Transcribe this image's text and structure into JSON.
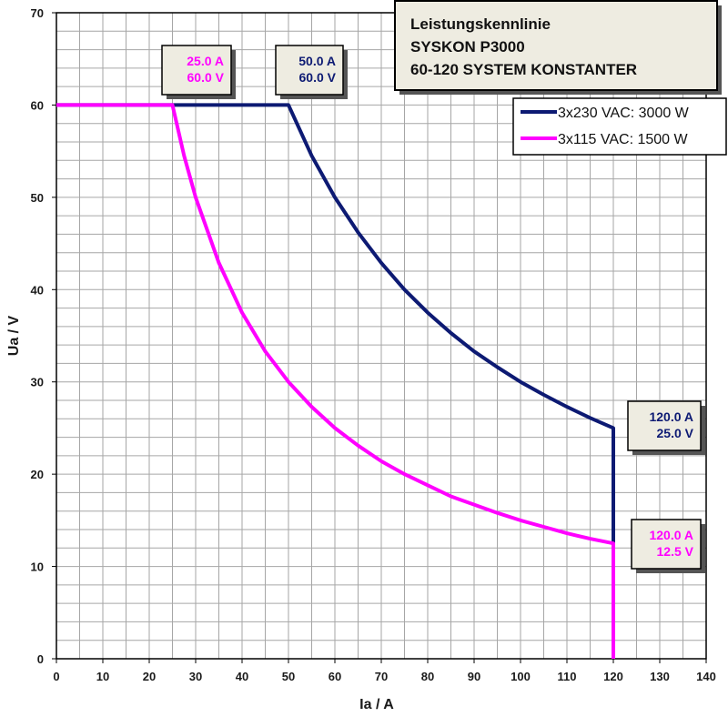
{
  "chart_data": {
    "type": "line",
    "title": [
      "Leistungskennlinie",
      "SYSKON P3000",
      "60-120 SYSTEM KONSTANTER"
    ],
    "xlabel": "Ia / A",
    "ylabel": "Ua / V",
    "xlim": [
      0,
      140
    ],
    "ylim": [
      0,
      70
    ],
    "x_ticks": [
      0,
      10,
      20,
      30,
      40,
      50,
      60,
      70,
      80,
      90,
      100,
      110,
      120,
      130,
      140
    ],
    "y_ticks": [
      0,
      10,
      20,
      30,
      40,
      50,
      60,
      70
    ],
    "grid": true,
    "legend_position": "top-right",
    "series": [
      {
        "name": "3x230 VAC: 3000 W",
        "color": "#0d1a73",
        "x": [
          0,
          50,
          55,
          60,
          65,
          70,
          75,
          80,
          85,
          90,
          95,
          100,
          105,
          110,
          115,
          120,
          120
        ],
        "y": [
          60,
          60,
          54.5,
          50,
          46.2,
          42.9,
          40,
          37.5,
          35.3,
          33.3,
          31.6,
          30,
          28.6,
          27.3,
          26.1,
          25,
          0
        ]
      },
      {
        "name": "3x115 VAC: 1500 W",
        "color": "#ff00ff",
        "x": [
          0,
          25,
          27.5,
          30,
          35,
          40,
          45,
          50,
          55,
          60,
          65,
          70,
          75,
          80,
          85,
          90,
          95,
          100,
          105,
          110,
          115,
          120,
          120
        ],
        "y": [
          60,
          60,
          54.5,
          50,
          42.9,
          37.5,
          33.3,
          30,
          27.3,
          25,
          23.1,
          21.4,
          20,
          18.8,
          17.6,
          16.7,
          15.8,
          15,
          14.3,
          13.6,
          13,
          12.5,
          0
        ]
      }
    ],
    "annotations": [
      {
        "lines": [
          "25.0 A",
          "60.0 V"
        ],
        "color": "#ff00ff"
      },
      {
        "lines": [
          "50.0 A",
          "60.0 V"
        ],
        "color": "#0d1a73"
      },
      {
        "lines": [
          "120.0 A",
          "25.0 V"
        ],
        "color": "#0d1a73"
      },
      {
        "lines": [
          "120.0 A",
          "12.5 V"
        ],
        "color": "#ff00ff"
      }
    ]
  },
  "colors": {
    "grid": "#a6a6a6",
    "axis": "#000000",
    "annotation_fill": "#eeece1",
    "title_fill": "#eeece1",
    "legend_fill": "#ffffff"
  }
}
